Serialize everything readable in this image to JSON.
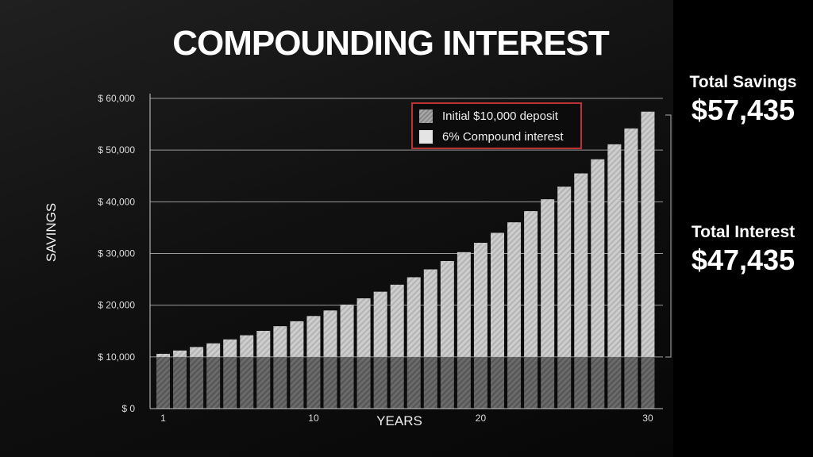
{
  "title": "COMPOUNDING INTEREST",
  "summary": {
    "savings_label": "Total Savings",
    "savings_value": "$57,435",
    "interest_label": "Total Interest",
    "interest_value": "$47,435"
  },
  "chart_data": {
    "type": "bar",
    "stacked": true,
    "xlabel": "YEARS",
    "ylabel": "SAVINGS",
    "ylim": [
      0,
      60000
    ],
    "yticks": [
      "$ 0",
      "$ 10,000",
      "$ 20,000",
      "$ 30,000",
      "$ 40,000",
      "$ 50,000",
      "$ 60,000"
    ],
    "xticks": [
      "1",
      "10",
      "20",
      "30"
    ],
    "grid": true,
    "legend_position": "top-right",
    "categories": [
      1,
      2,
      3,
      4,
      5,
      6,
      7,
      8,
      9,
      10,
      11,
      12,
      13,
      14,
      15,
      16,
      17,
      18,
      19,
      20,
      21,
      22,
      23,
      24,
      25,
      26,
      27,
      28,
      29,
      30
    ],
    "series": [
      {
        "name": "Initial $10,000 deposit",
        "color": "#6e6e6e",
        "values": [
          10000,
          10000,
          10000,
          10000,
          10000,
          10000,
          10000,
          10000,
          10000,
          10000,
          10000,
          10000,
          10000,
          10000,
          10000,
          10000,
          10000,
          10000,
          10000,
          10000,
          10000,
          10000,
          10000,
          10000,
          10000,
          10000,
          10000,
          10000,
          10000,
          10000
        ]
      },
      {
        "name": "6% Compound interest",
        "color": "#c8c8c8",
        "values": [
          600,
          1236,
          1910,
          2625,
          3382,
          4185,
          5036,
          5938,
          6895,
          7908,
          8983,
          10122,
          11329,
          12609,
          13966,
          15404,
          16928,
          18543,
          20256,
          22071,
          23996,
          26035,
          28197,
          30489,
          32919,
          35494,
          38223,
          41117,
          44184,
          47435
        ]
      }
    ]
  }
}
